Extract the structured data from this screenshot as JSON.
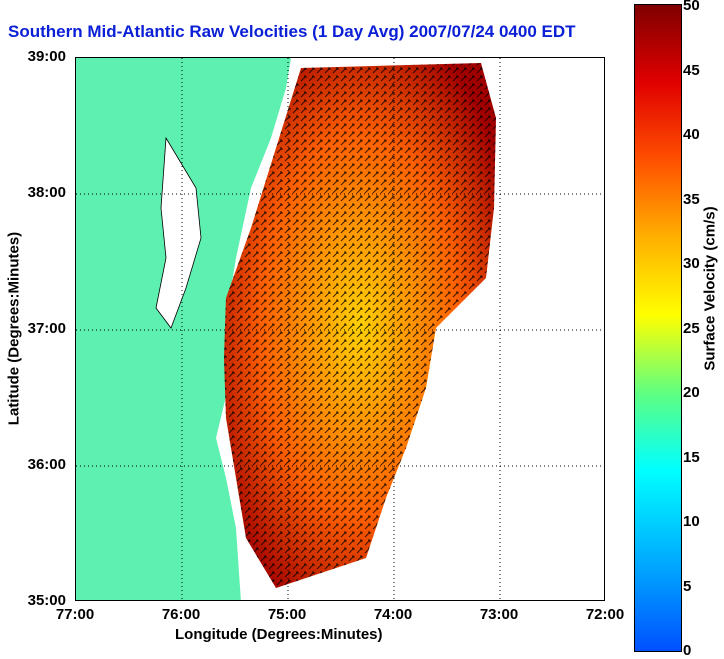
{
  "title": "Southern Mid-Atlantic Raw Velocities (1 Day Avg) 2007/07/24 0400 EDT",
  "axes": {
    "xlabel": "Longitude (Degrees:Minutes)",
    "ylabel": "Latitude (Degrees:Minutes)",
    "xticks": [
      "77:00",
      "76:00",
      "75:00",
      "74:00",
      "73:00",
      "72:00"
    ],
    "yticks": [
      "39:00",
      "38:00",
      "37:00",
      "36:00",
      "35:00"
    ]
  },
  "colorbar": {
    "label": "Surface Velocity (cm/s)",
    "ticks": [
      "50",
      "45",
      "40",
      "35",
      "30",
      "25",
      "20",
      "15",
      "10",
      "5",
      "0"
    ]
  },
  "colors": {
    "land": "#5ef0b0",
    "title": "#0a1fd6"
  }
}
